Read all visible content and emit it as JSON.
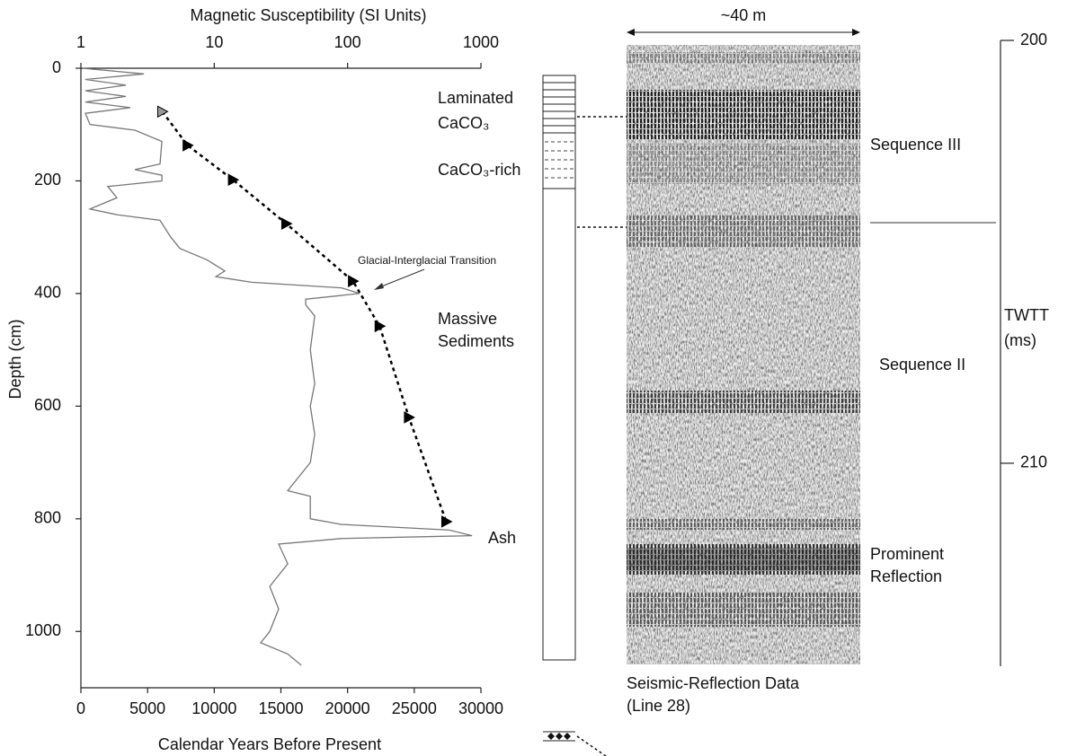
{
  "chart_data": {
    "type": "line",
    "title_top": "Magnetic Susceptibility (SI Units)",
    "xlabel": "Calendar Years Before Present",
    "ylabel": "Depth (cm)",
    "ylim": [
      0,
      1100
    ],
    "yticks": [
      0,
      200,
      400,
      600,
      800,
      1000
    ],
    "xlim": [
      0,
      30000
    ],
    "xticks": [
      0,
      5000,
      10000,
      15000,
      20000,
      25000,
      30000
    ],
    "x_top_log": true,
    "x_top_lim": [
      1,
      1000
    ],
    "x_top_ticks": [
      1,
      10,
      100,
      1000
    ],
    "magnetic_susceptibility": {
      "color": "#777",
      "depth": [
        0,
        10,
        20,
        30,
        40,
        50,
        60,
        70,
        80,
        100,
        110,
        130,
        170,
        180,
        190,
        200,
        210,
        230,
        250,
        260,
        270,
        300,
        320,
        340,
        360,
        370,
        380,
        390,
        400,
        410,
        420,
        440,
        500,
        560,
        600,
        650,
        700,
        750,
        760,
        800,
        810,
        820,
        830,
        835,
        845,
        880,
        920,
        960,
        1000,
        1020,
        1040,
        1060
      ],
      "values": [
        1.03,
        2.97,
        1.08,
        2.17,
        1.08,
        2.17,
        1.08,
        2.35,
        1.08,
        1.17,
        2.54,
        4.05,
        3.92,
        2.54,
        4.05,
        4.05,
        1.59,
        1.86,
        1.17,
        1.86,
        3.92,
        4.72,
        5.52,
        8.8,
        12,
        10.3,
        19.1,
        90,
        123,
        48.5,
        48.5,
        56.7,
        52.5,
        56.7,
        52.5,
        56.7,
        52.5,
        35.6,
        52.5,
        52.5,
        90,
        582,
        857,
        90,
        30.4,
        35.6,
        26.1,
        30.4,
        26.1,
        22.3,
        35.6,
        44.9
      ]
    },
    "age_model": {
      "color": "#000",
      "depth": [
        77,
        137,
        198,
        276,
        378,
        458,
        620,
        805
      ],
      "years": [
        6100,
        8000,
        11400,
        15400,
        20400,
        22400,
        24600,
        27400
      ]
    },
    "annotations": {
      "laminated": [
        "Laminated",
        "CaCO₃"
      ],
      "caco3_rich": "CaCO₃-rich",
      "transition": "Glacial-Interglacial Transition",
      "massive": [
        "Massive",
        "Sediments"
      ],
      "ash": "Ash"
    },
    "seismic": {
      "width_label": "~40 m",
      "sequence_3": "Sequence III",
      "sequence_2": "Sequence II",
      "prominent": [
        "Prominent",
        "Reflection"
      ],
      "caption": [
        "Seismic-Reflection Data",
        "(Line 28)"
      ]
    },
    "twtt": {
      "label": [
        "TWTT",
        "(ms)"
      ],
      "lim": [
        200,
        214.8
      ],
      "ticks": [
        200,
        210
      ]
    }
  }
}
